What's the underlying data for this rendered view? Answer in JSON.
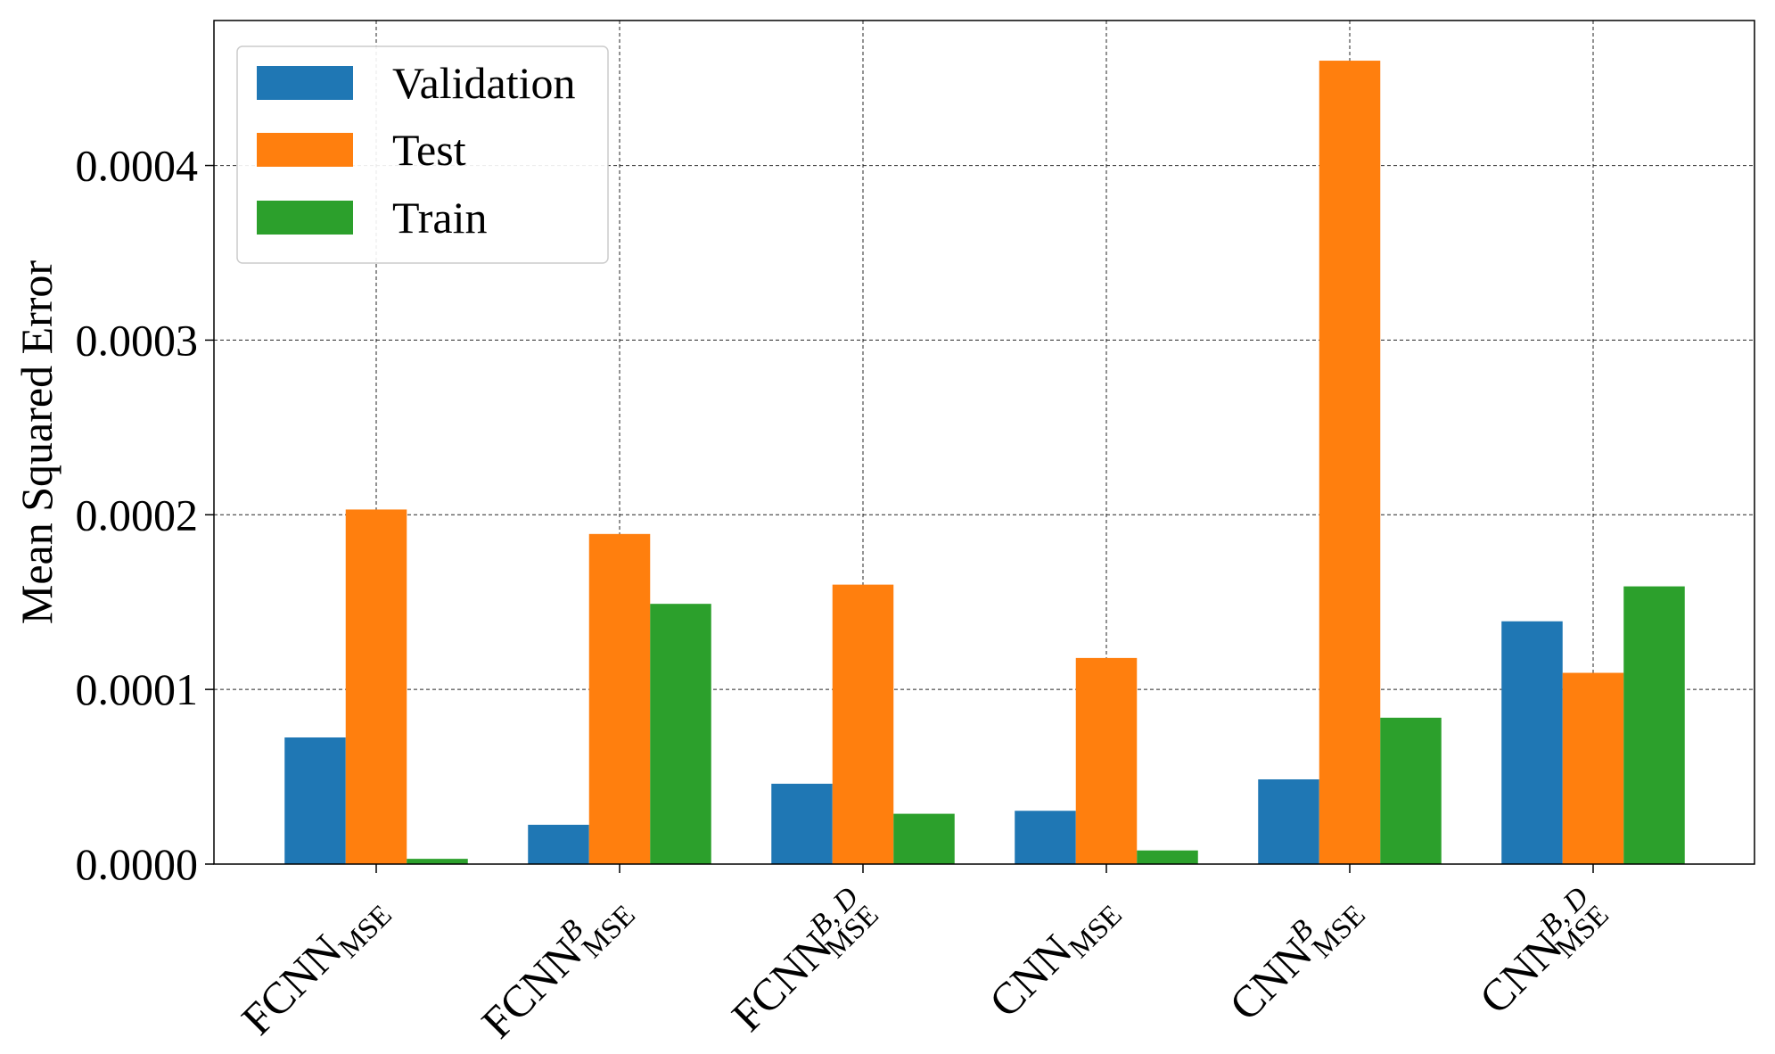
{
  "chart_data": {
    "type": "bar",
    "title": "",
    "xlabel": "",
    "ylabel": "Mean Squared Error",
    "ylim": [
      0,
      0.000483
    ],
    "yticks": [
      "0.0000",
      "0.0001",
      "0.0002",
      "0.0003",
      "0.0004"
    ],
    "ytick_values": [
      0,
      0.0001,
      0.0002,
      0.0003,
      0.0004
    ],
    "grid": true,
    "legend_position": "top-left",
    "categories": [
      {
        "base": "FCNN",
        "sup": "",
        "sub": "MSE"
      },
      {
        "base": "FCNN",
        "sup": "B",
        "sub": "MSE"
      },
      {
        "base": "FCNN",
        "sup": "B, D",
        "sub": "MSE"
      },
      {
        "base": "CNN",
        "sup": "",
        "sub": "MSE"
      },
      {
        "base": "CNN",
        "sup": "B",
        "sub": "MSE"
      },
      {
        "base": "CNN",
        "sup": "B, D",
        "sub": "MSE"
      }
    ],
    "series": [
      {
        "name": "Validation",
        "color": "#1f77b4",
        "values": [
          7.25e-05,
          2.25e-05,
          4.6e-05,
          3.05e-05,
          4.85e-05,
          0.000139
        ]
      },
      {
        "name": "Test",
        "color": "#ff7f0e",
        "values": [
          0.000203,
          0.000189,
          0.00016,
          0.000118,
          0.00046,
          0.0001095
        ]
      },
      {
        "name": "Train",
        "color": "#2ca02c",
        "values": [
          3e-06,
          0.000149,
          2.88e-05,
          7.8e-06,
          8.38e-05,
          0.000159
        ]
      }
    ]
  }
}
